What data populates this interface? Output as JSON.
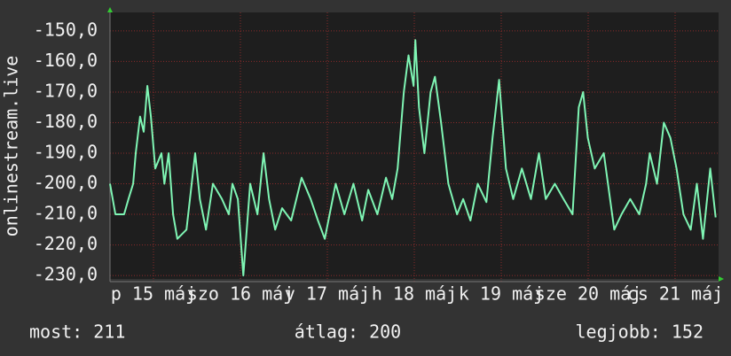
{
  "chart_data": {
    "type": "line",
    "ylabel": "onlinestream.live",
    "x": [
      0,
      1.5,
      3.9,
      5.1,
      6.4,
      7.1,
      8.3,
      9.3,
      10.3,
      11.3,
      12.5,
      14.2,
      15,
      16.2,
      17.4,
      18.6,
      21.1,
      23.5,
      24.8,
      26.5,
      28.4,
      30.9,
      32.8,
      33.8,
      35.3,
      36.8,
      38.7,
      40.7,
      42.4,
      43.9,
      45.6,
      47.5,
      50,
      52.9,
      55.4,
      57.4,
      59.3,
      62.3,
      64.7,
      67.2,
      69.6,
      71.3,
      73.8,
      76.2,
      77.9,
      79.4,
      81.1,
      82.4,
      83.8,
      84.3,
      85.3,
      86.8,
      88.5,
      89.7,
      91.4,
      93.4,
      95.8,
      97.5,
      99.5,
      101.5,
      103.9,
      105.6,
      107.4,
      109.3,
      111.3,
      113.7,
      116.2,
      118.4,
      120.3,
      122.8,
      125.2,
      127.7,
      129.4,
      130.6,
      131.9,
      133.8,
      136.3,
      139.2,
      141.2,
      143.6,
      146.1,
      148,
      149,
      151,
      152.9,
      154.7,
      156.4,
      158.3,
      160.3,
      162,
      163.7,
      165.7,
      167.2
    ],
    "series": [
      {
        "name": "onlinestream.live",
        "color": "#7ff5b4",
        "values": [
          -200,
          -210,
          -210,
          -205,
          -200,
          -190,
          -178,
          -183,
          -168,
          -178,
          -195,
          -190,
          -200,
          -190,
          -210,
          -218,
          -215,
          -190,
          -205,
          -215,
          -200,
          -205,
          -210,
          -200,
          -205,
          -230,
          -200,
          -210,
          -190,
          -205,
          -215,
          -208,
          -212,
          -198,
          -205,
          -212,
          -218,
          -200,
          -210,
          -200,
          -212,
          -202,
          -210,
          -198,
          -205,
          -195,
          -170,
          -158,
          -168,
          -153,
          -175,
          -190,
          -170,
          -165,
          -180,
          -200,
          -210,
          -205,
          -212,
          -200,
          -206,
          -185,
          -166,
          -195,
          -205,
          -195,
          -205,
          -190,
          -205,
          -200,
          -205,
          -210,
          -175,
          -170,
          -185,
          -195,
          -190,
          -215,
          -210,
          -205,
          -210,
          -200,
          -190,
          -200,
          -180,
          -185,
          -195,
          -210,
          -215,
          -200,
          -218,
          -195,
          -211
        ]
      }
    ],
    "xlim": [
      0,
      168
    ],
    "xticks": [
      {
        "value": 12,
        "label": "p 15 máj"
      },
      {
        "value": 36,
        "label": "szo 16 máj"
      },
      {
        "value": 60,
        "label": "v 17 máj"
      },
      {
        "value": 84,
        "label": "h 18 máj"
      },
      {
        "value": 108,
        "label": "k 19 máj"
      },
      {
        "value": 132,
        "label": "sze 20 máj"
      },
      {
        "value": 156,
        "label": "cs 21 máj"
      }
    ],
    "ylim": [
      -232,
      -148
    ],
    "yticks": [
      {
        "value": -150,
        "label": "-150,0"
      },
      {
        "value": -160,
        "label": "-160,0"
      },
      {
        "value": -170,
        "label": "-170,0"
      },
      {
        "value": -180,
        "label": "-180,0"
      },
      {
        "value": -190,
        "label": "-190,0"
      },
      {
        "value": -200,
        "label": "-200,0"
      },
      {
        "value": -210,
        "label": "-210,0"
      },
      {
        "value": -220,
        "label": "-220,0"
      },
      {
        "value": -230,
        "label": "-230,0"
      }
    ],
    "grid": true,
    "footer": [
      "most: 211",
      "átlag: 200",
      "legjobb: 152"
    ]
  }
}
